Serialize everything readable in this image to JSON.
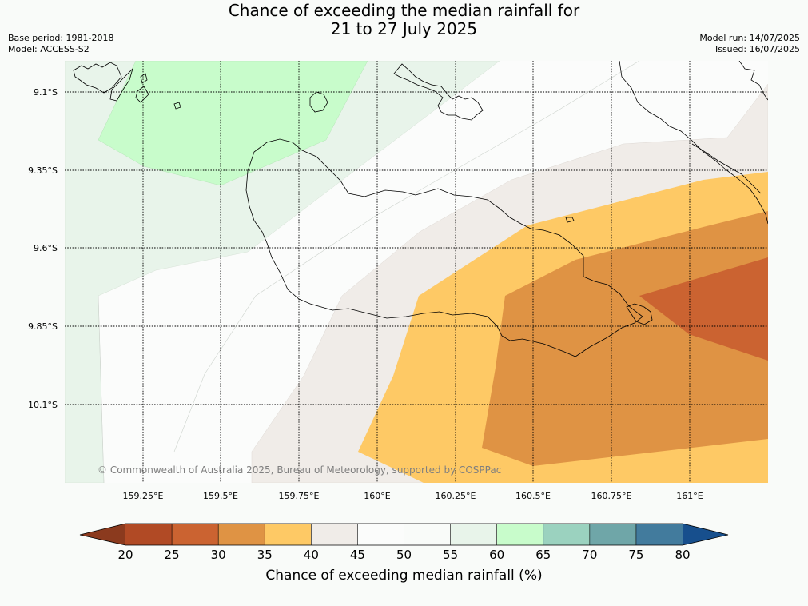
{
  "header": {
    "title_line1": "Chance of exceeding the median rainfall for",
    "title_line2": "21 to 27 July 2025",
    "base_period": "Base period: 1981-2018",
    "model": "Model: ACCESS-S2",
    "model_run": "Model run: 14/07/2025",
    "issued": "Issued: 16/07/2025"
  },
  "map": {
    "lat_labels": [
      "9.1°S",
      "9.35°S",
      "9.6°S",
      "9.85°S",
      "10.1°S"
    ],
    "lon_labels": [
      "159.25°E",
      "159.5°E",
      "159.75°E",
      "160°E",
      "160.25°E",
      "160.5°E",
      "160.75°E",
      "161°E"
    ],
    "copyright": "© Commonwealth of Australia 2025, Bureau of Meteorology, supported by COSPPac"
  },
  "colorbar": {
    "ticks": [
      "20",
      "25",
      "30",
      "35",
      "40",
      "45",
      "50",
      "55",
      "60",
      "65",
      "70",
      "75",
      "80"
    ],
    "colors": [
      "#b14a25",
      "#cb6331",
      "#df9344",
      "#fec965",
      "#f0ece8",
      "#fbfcfb",
      "#f9fbf9",
      "#e8f4ea",
      "#c8fccb",
      "#9bd2bf",
      "#6fa6a8",
      "#427b9d"
    ],
    "low_extend_color": "#8b3a1e",
    "high_extend_color": "#174f8d",
    "label": "Chance of exceeding median rainfall (%)"
  }
}
